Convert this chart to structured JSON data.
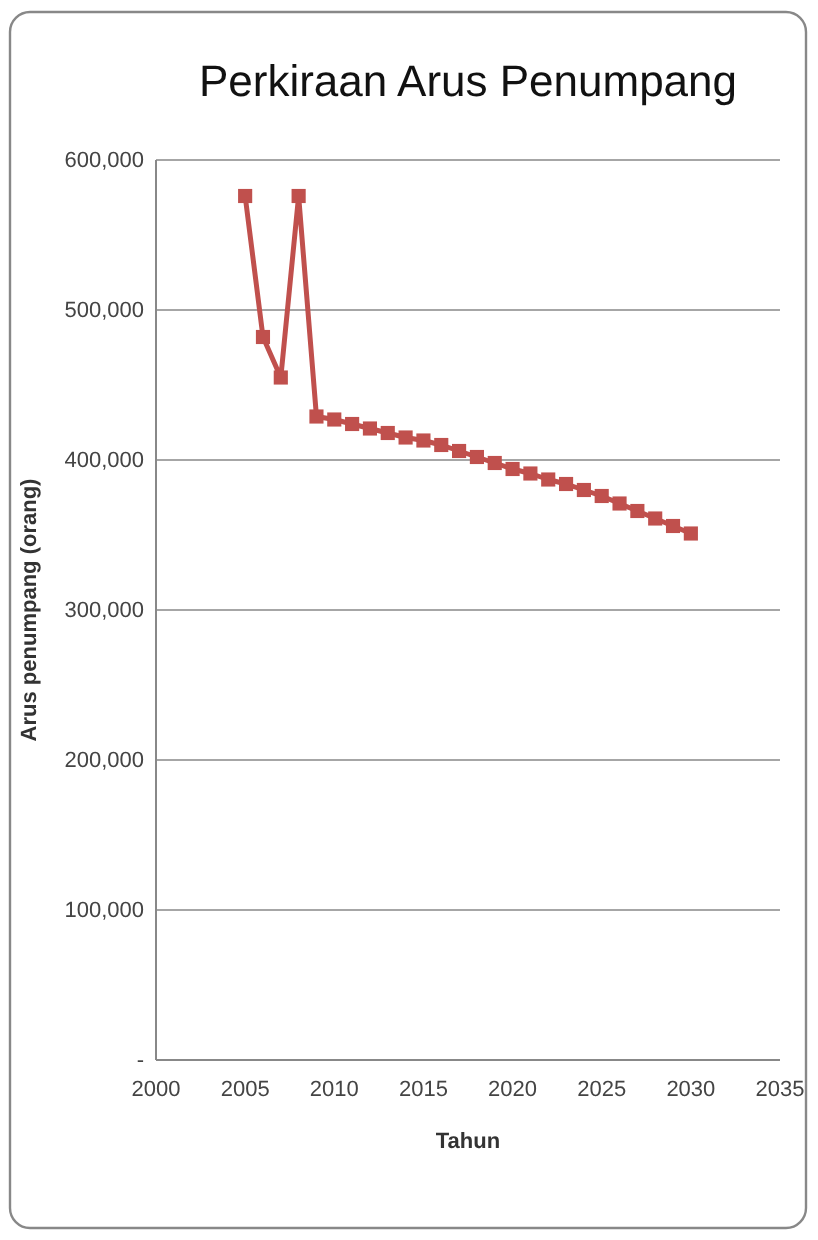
{
  "chart_data": {
    "type": "line",
    "title": "Perkiraan Arus Penumpang",
    "xlabel": "Tahun",
    "ylabel": "Arus penumpang (orang)",
    "x": [
      2005,
      2006,
      2007,
      2008,
      2009,
      2010,
      2011,
      2012,
      2013,
      2014,
      2015,
      2016,
      2017,
      2018,
      2019,
      2020,
      2021,
      2022,
      2023,
      2024,
      2025,
      2026,
      2027,
      2028,
      2029,
      2030
    ],
    "series": [
      {
        "color": "#c0504d",
        "values": [
          576000,
          482000,
          455000,
          576000,
          429000,
          427000,
          424000,
          421000,
          418000,
          415000,
          413000,
          410000,
          406000,
          402000,
          398000,
          394000,
          391000,
          387000,
          384000,
          380000,
          376000,
          371000,
          366000,
          361000,
          356000,
          351000
        ]
      }
    ],
    "xlim": [
      2000,
      2035
    ],
    "xticks": [
      2000,
      2005,
      2010,
      2015,
      2020,
      2025,
      2030,
      2035
    ],
    "ylim": [
      0,
      600000
    ],
    "yticks": [
      {
        "value": 0,
        "label": "-"
      },
      {
        "value": 100000,
        "label": "100,000"
      },
      {
        "value": 200000,
        "label": "200,000"
      },
      {
        "value": 300000,
        "label": "300,000"
      },
      {
        "value": 400000,
        "label": "400,000"
      },
      {
        "value": 500000,
        "label": "500,000"
      },
      {
        "value": 600000,
        "label": "600,000"
      }
    ],
    "grid": "y",
    "marker": "square",
    "line_style": "solid"
  }
}
